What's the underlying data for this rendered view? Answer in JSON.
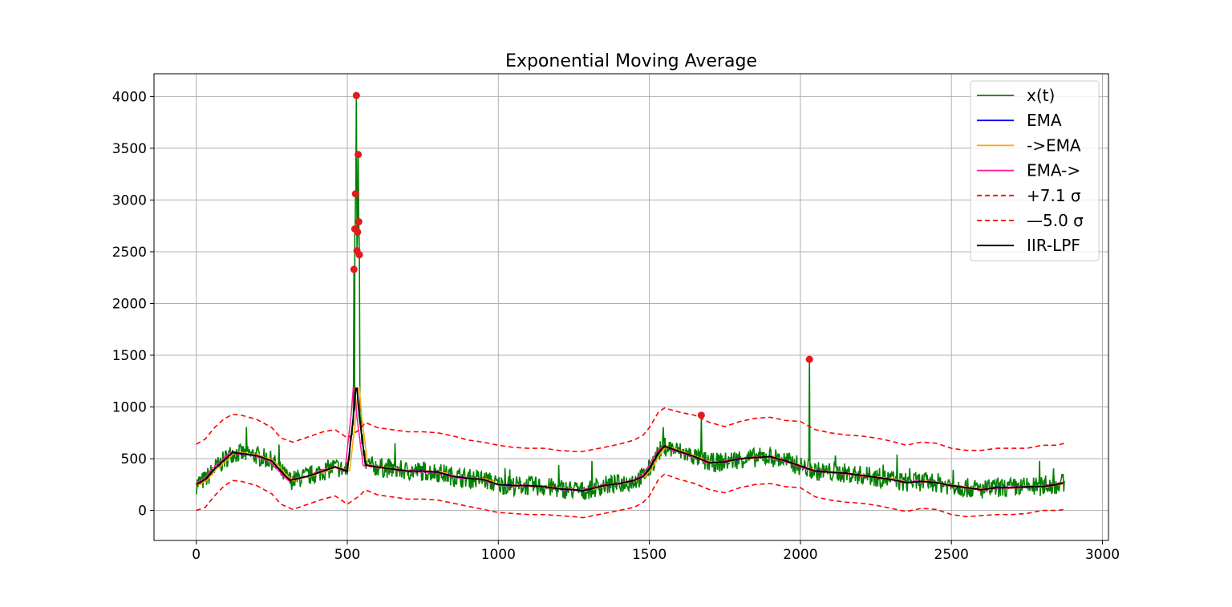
{
  "chart_data": {
    "type": "line",
    "title": "Exponential Moving Average",
    "xlabel": "",
    "ylabel": "",
    "xlim": [
      -140,
      3020
    ],
    "ylim": [
      -290,
      4220
    ],
    "grid": true,
    "legend_position": "top-right",
    "x_ticks": [
      0,
      500,
      1000,
      1500,
      2000,
      2500,
      3000
    ],
    "y_ticks": [
      0,
      500,
      1000,
      1500,
      2000,
      2500,
      3000,
      3500,
      4000
    ],
    "x_tick_labels": [
      "0",
      "500",
      "1000",
      "1500",
      "2000",
      "2500",
      "3000"
    ],
    "y_tick_labels": [
      "0",
      "500",
      "1000",
      "1500",
      "2000",
      "2500",
      "3000",
      "3500",
      "4000"
    ],
    "legend": [
      {
        "label": "x(t)",
        "color": "#008000",
        "dash": "solid"
      },
      {
        "label": "EMA",
        "color": "#0000ff",
        "dash": "solid"
      },
      {
        "label": "->EMA",
        "color": "#ffa500",
        "dash": "solid"
      },
      {
        "label": "EMA->",
        "color": "#ff1493",
        "dash": "solid"
      },
      {
        "label": "+7.1 σ",
        "color": "#ff0000",
        "dash": "dashed"
      },
      {
        "label": "—5.0 σ",
        "color": "#ff0000",
        "dash": "dashed"
      },
      {
        "label": "IIR-LPF",
        "color": "#000000",
        "dash": "solid"
      }
    ],
    "trend_knots": {
      "x": [
        0,
        30,
        60,
        90,
        120,
        150,
        200,
        250,
        280,
        310,
        340,
        380,
        420,
        460,
        500,
        520,
        530,
        540,
        560,
        600,
        650,
        700,
        750,
        800,
        850,
        900,
        950,
        1000,
        1050,
        1100,
        1150,
        1200,
        1250,
        1280,
        1350,
        1400,
        1450,
        1480,
        1500,
        1530,
        1550,
        1600,
        1650,
        1700,
        1750,
        1800,
        1850,
        1900,
        1950,
        2000,
        2050,
        2100,
        2150,
        2200,
        2250,
        2300,
        2350,
        2400,
        2450,
        2500,
        2550,
        2600,
        2650,
        2700,
        2750,
        2800,
        2850,
        2875
      ],
      "y": [
        250,
        300,
        400,
        480,
        560,
        550,
        530,
        480,
        380,
        290,
        310,
        340,
        380,
        420,
        380,
        900,
        1250,
        900,
        440,
        420,
        400,
        380,
        380,
        370,
        330,
        310,
        300,
        250,
        240,
        240,
        230,
        210,
        200,
        190,
        240,
        260,
        290,
        330,
        400,
        560,
        620,
        570,
        520,
        460,
        470,
        500,
        510,
        520,
        480,
        430,
        380,
        370,
        360,
        340,
        320,
        300,
        270,
        280,
        270,
        240,
        220,
        200,
        220,
        220,
        230,
        230,
        250,
        270
      ]
    },
    "series": [
      {
        "name": "x(t)",
        "color": "#008000",
        "kind": "noisy-signal",
        "noise_amplitude": 95,
        "step": 2
      },
      {
        "name": "EMA",
        "color": "#0000ff",
        "kind": "smoothed"
      },
      {
        "name": "->EMA",
        "color": "#ffa500",
        "kind": "smoothed"
      },
      {
        "name": "EMA->",
        "color": "#ff1493",
        "kind": "smoothed"
      },
      {
        "name": "+7.1 σ",
        "color": "#ff0000",
        "dash": "dashed",
        "x": [
          0,
          30,
          60,
          90,
          120,
          150,
          200,
          250,
          280,
          320,
          380,
          420,
          460,
          500,
          540,
          560,
          600,
          650,
          700,
          750,
          800,
          850,
          900,
          950,
          1000,
          1050,
          1100,
          1150,
          1200,
          1250,
          1280,
          1350,
          1400,
          1450,
          1480,
          1500,
          1530,
          1550,
          1600,
          1650,
          1700,
          1750,
          1800,
          1850,
          1900,
          1950,
          2000,
          2050,
          2100,
          2150,
          2200,
          2250,
          2300,
          2350,
          2400,
          2450,
          2500,
          2550,
          2600,
          2650,
          2700,
          2750,
          2800,
          2850,
          2875
        ],
        "y": [
          640,
          690,
          800,
          880,
          930,
          920,
          880,
          800,
          700,
          660,
          720,
          760,
          780,
          700,
          780,
          850,
          800,
          780,
          760,
          760,
          750,
          720,
          680,
          660,
          630,
          610,
          600,
          600,
          580,
          570,
          570,
          610,
          640,
          680,
          730,
          800,
          950,
          990,
          950,
          920,
          850,
          810,
          860,
          890,
          900,
          870,
          860,
          780,
          750,
          730,
          720,
          700,
          670,
          630,
          660,
          650,
          600,
          580,
          580,
          600,
          600,
          600,
          630,
          630,
          650
        ]
      },
      {
        "name": "—5.0 σ",
        "color": "#ff0000",
        "dash": "dashed",
        "x": [
          0,
          30,
          60,
          90,
          120,
          150,
          200,
          250,
          280,
          320,
          380,
          420,
          460,
          500,
          540,
          560,
          600,
          650,
          700,
          750,
          800,
          850,
          900,
          950,
          1000,
          1050,
          1100,
          1150,
          1200,
          1250,
          1280,
          1350,
          1400,
          1450,
          1480,
          1500,
          1530,
          1550,
          1600,
          1650,
          1700,
          1750,
          1800,
          1850,
          1900,
          1950,
          2000,
          2050,
          2100,
          2150,
          2200,
          2250,
          2300,
          2350,
          2400,
          2450,
          2500,
          2550,
          2600,
          2650,
          2700,
          2750,
          2800,
          2850,
          2875
        ],
        "y": [
          0,
          30,
          140,
          230,
          290,
          280,
          240,
          160,
          60,
          10,
          70,
          110,
          140,
          60,
          140,
          200,
          150,
          130,
          110,
          110,
          100,
          70,
          40,
          10,
          -20,
          -30,
          -40,
          -40,
          -50,
          -60,
          -70,
          -30,
          0,
          30,
          80,
          140,
          300,
          350,
          300,
          260,
          200,
          170,
          220,
          250,
          260,
          230,
          220,
          130,
          100,
          80,
          70,
          50,
          20,
          -10,
          20,
          10,
          -40,
          -60,
          -50,
          -40,
          -40,
          -30,
          0,
          0,
          10
        ]
      },
      {
        "name": "IIR-LPF",
        "color": "#000000",
        "kind": "smoothed"
      }
    ],
    "spikes": [
      {
        "x": 522,
        "y": 2330
      },
      {
        "x": 525,
        "y": 2720
      },
      {
        "x": 527,
        "y": 3060
      },
      {
        "x": 530,
        "y": 4010
      },
      {
        "x": 532,
        "y": 2510
      },
      {
        "x": 534,
        "y": 2690
      },
      {
        "x": 536,
        "y": 3440
      },
      {
        "x": 538,
        "y": 2790
      },
      {
        "x": 540,
        "y": 2470
      },
      {
        "x": 1672,
        "y": 920
      },
      {
        "x": 2030,
        "y": 1460
      }
    ],
    "anomaly_color": "#e31a1c"
  }
}
